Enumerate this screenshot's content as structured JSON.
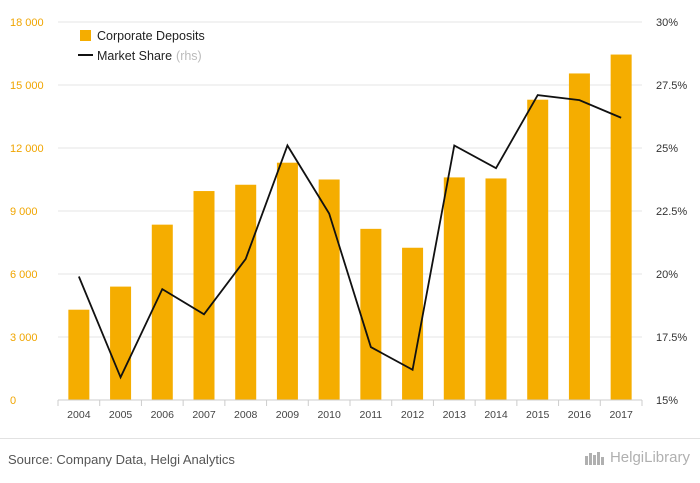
{
  "chart_data": {
    "type": "bar",
    "categories": [
      "2004",
      "2005",
      "2006",
      "2007",
      "2008",
      "2009",
      "2010",
      "2011",
      "2012",
      "2013",
      "2014",
      "2015",
      "2016",
      "2017"
    ],
    "series": [
      {
        "name": "Corporate Deposits",
        "type": "bar",
        "axis": "left",
        "color": "#f5ad00",
        "values": [
          4300,
          5400,
          8350,
          9950,
          10250,
          11300,
          10500,
          8150,
          7250,
          10600,
          10550,
          14300,
          15550,
          16450
        ]
      },
      {
        "name": "Market Share",
        "name_suffix": "(rhs)",
        "type": "line",
        "axis": "right",
        "color": "#111111",
        "values": [
          19.9,
          15.9,
          19.4,
          18.4,
          20.6,
          25.1,
          22.4,
          17.1,
          16.2,
          25.1,
          24.2,
          27.1,
          26.9,
          26.2
        ]
      }
    ],
    "y_left": {
      "min": 0,
      "max": 18000,
      "ticks": [
        "0",
        "3 000",
        "6 000",
        "9 000",
        "12 000",
        "15 000",
        "18 000"
      ]
    },
    "y_right": {
      "min": 15,
      "max": 30,
      "ticks": [
        "15%",
        "17.5%",
        "20%",
        "22.5%",
        "25%",
        "27.5%",
        "30%"
      ]
    },
    "grid": true,
    "legend_position": "top-left"
  },
  "footer": {
    "source": "Source: Company Data, Helgi Analytics",
    "brand": "HelgiLibrary"
  }
}
